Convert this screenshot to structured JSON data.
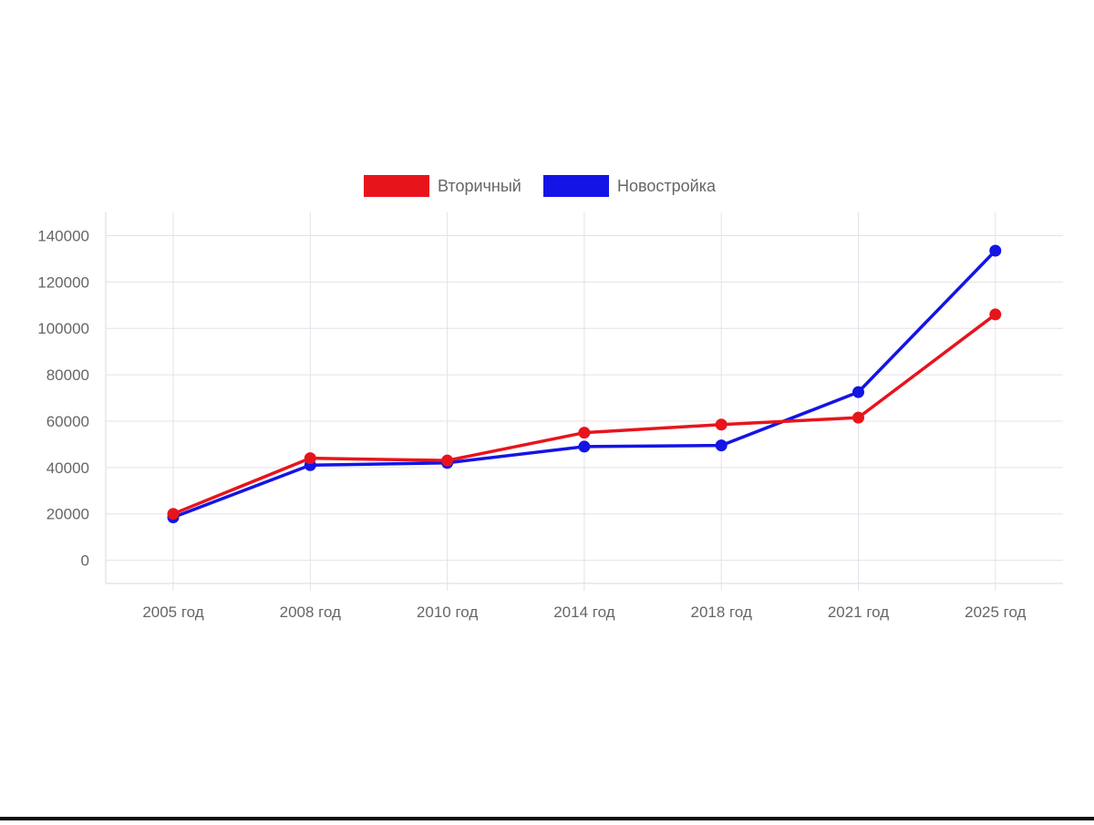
{
  "chart_data": {
    "type": "line",
    "title": "",
    "xlabel": "",
    "ylabel": "",
    "categories": [
      "2005 год",
      "2008 год",
      "2010 год",
      "2014 год",
      "2018 год",
      "2021 год",
      "2025 год"
    ],
    "series": [
      {
        "name": "Вторичный",
        "color": "#e8141c",
        "values": [
          20000,
          44000,
          43000,
          55000,
          58500,
          61500,
          106000
        ]
      },
      {
        "name": "Новостройка",
        "color": "#1414e6",
        "values": [
          18500,
          41000,
          42000,
          49000,
          49500,
          72500,
          133500
        ]
      }
    ],
    "y_ticks": [
      "0",
      "20000",
      "40000",
      "60000",
      "80000",
      "100000",
      "120000",
      "140000"
    ],
    "ylim": [
      -10000,
      150000
    ],
    "grid": true,
    "legend_position": "top-center"
  }
}
